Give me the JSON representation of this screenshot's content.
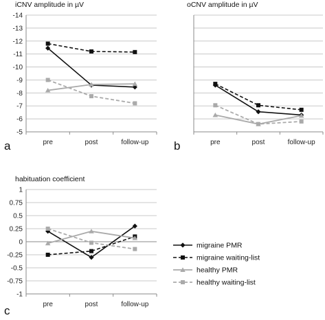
{
  "colors": {
    "migraine": "#111111",
    "healthy": "#aaaaaa",
    "grid": "#c8c8c8"
  },
  "legend": {
    "items": [
      {
        "label": "migraine PMR",
        "color": "#111111",
        "dash": "solid",
        "marker": "diamond"
      },
      {
        "label": "migraine waiting-list",
        "color": "#111111",
        "dash": "dashed",
        "marker": "square"
      },
      {
        "label": "healthy PMR",
        "color": "#aaaaaa",
        "dash": "solid",
        "marker": "triangle"
      },
      {
        "label": "healthy waiting-list",
        "color": "#aaaaaa",
        "dash": "dashed",
        "marker": "square"
      }
    ]
  },
  "chart_data": [
    {
      "type": "line",
      "panel": "a",
      "title": "iCNV amplitude in µV",
      "categories": [
        "pre",
        "post",
        "follow-up"
      ],
      "ylim": [
        -5,
        -14
      ],
      "yticks": [
        "-14",
        "-13",
        "-12",
        "-11",
        "-10",
        "-9",
        "-8",
        "-7",
        "-6",
        "-5"
      ],
      "ytick_values": [
        -14,
        -13,
        -12,
        -11,
        -10,
        -9,
        -8,
        -7,
        -6,
        -5
      ],
      "grid": true,
      "series": [
        {
          "name": "migraine PMR",
          "values": [
            -11.45,
            -8.6,
            -8.45
          ]
        },
        {
          "name": "migraine waiting-list",
          "values": [
            -11.8,
            -11.2,
            -11.15
          ]
        },
        {
          "name": "healthy PMR",
          "values": [
            -8.2,
            -8.65,
            -8.7
          ]
        },
        {
          "name": "healthy waiting-list",
          "values": [
            -9.0,
            -7.75,
            -7.2
          ]
        }
      ]
    },
    {
      "type": "line",
      "panel": "b",
      "title": "oCNV amplitude in µV",
      "categories": [
        "pre",
        "post",
        "follow-up"
      ],
      "ylim": [
        -5,
        -14
      ],
      "yticks": [],
      "ytick_values": [
        -14,
        -13,
        -12,
        -11,
        -10,
        -9,
        -8,
        -7,
        -6,
        -5
      ],
      "grid": true,
      "series": [
        {
          "name": "migraine PMR",
          "values": [
            -8.6,
            -6.55,
            -6.3
          ]
        },
        {
          "name": "migraine waiting-list",
          "values": [
            -8.7,
            -7.05,
            -6.7
          ]
        },
        {
          "name": "healthy PMR",
          "values": [
            -6.3,
            -5.6,
            -6.25
          ]
        },
        {
          "name": "healthy waiting-list",
          "values": [
            -7.05,
            -5.6,
            -5.8
          ]
        }
      ]
    },
    {
      "type": "line",
      "panel": "c",
      "title": "habituation coefficient",
      "categories": [
        "pre",
        "post",
        "follow-up"
      ],
      "ylim": [
        -1,
        1
      ],
      "yticks": [
        "1",
        "0.75",
        "0.5",
        "0.25",
        "0",
        "-0.25",
        "-0.5",
        "-0.75",
        "-1"
      ],
      "ytick_values": [
        1,
        0.75,
        0.5,
        0.25,
        0,
        -0.25,
        -0.5,
        -0.75,
        -1
      ],
      "grid": true,
      "series": [
        {
          "name": "migraine PMR",
          "values": [
            0.2,
            -0.3,
            0.3
          ]
        },
        {
          "name": "migraine waiting-list",
          "values": [
            -0.25,
            -0.18,
            0.1
          ]
        },
        {
          "name": "healthy PMR",
          "values": [
            -0.03,
            0.2,
            0.07
          ]
        },
        {
          "name": "healthy waiting-list",
          "values": [
            0.25,
            -0.02,
            -0.14
          ]
        }
      ]
    }
  ]
}
